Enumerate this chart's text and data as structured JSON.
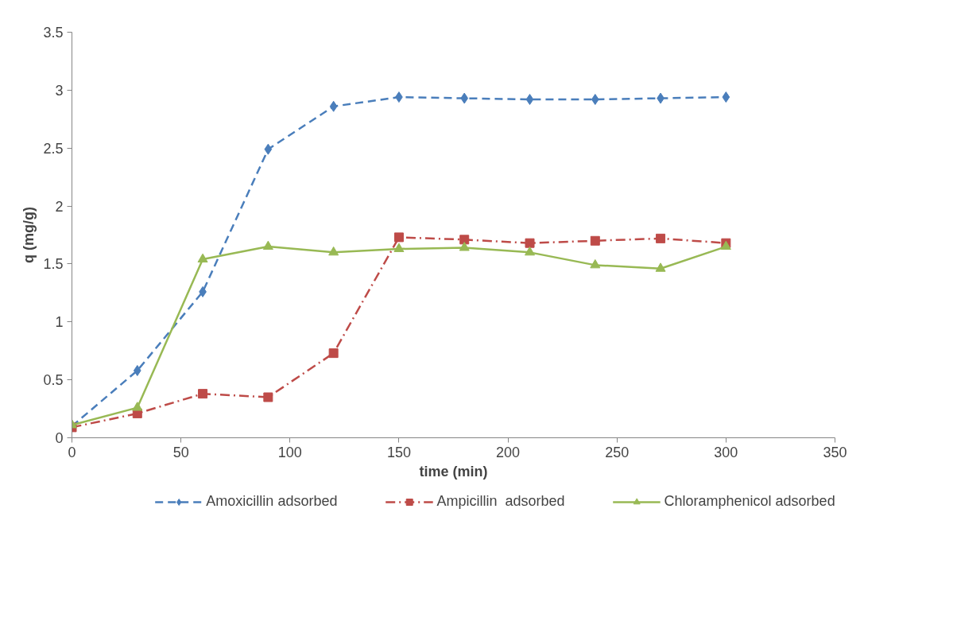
{
  "chart_data": {
    "type": "line",
    "xlabel": "time (min)",
    "ylabel": "q (mg/g)",
    "x": [
      0,
      30,
      60,
      90,
      120,
      150,
      180,
      210,
      240,
      270,
      300
    ],
    "series": [
      {
        "name": "Amoxicillin adsorbed",
        "color": "#4a7ebb",
        "marker": "diamond",
        "line_style": "dashed",
        "values": [
          0.1,
          0.58,
          1.26,
          2.49,
          2.86,
          2.94,
          2.93,
          2.92,
          2.92,
          2.93,
          2.94
        ]
      },
      {
        "name": "Ampicillin  adsorbed",
        "color": "#be4b48",
        "marker": "square",
        "line_style": "dashdot",
        "values": [
          0.09,
          0.21,
          0.38,
          0.35,
          0.73,
          1.73,
          1.71,
          1.68,
          1.7,
          1.72,
          1.68
        ]
      },
      {
        "name": "Chloramphenicol adsorbed",
        "color": "#98b954",
        "marker": "triangle",
        "line_style": "solid",
        "values": [
          0.11,
          0.26,
          1.54,
          1.65,
          1.6,
          1.63,
          1.64,
          1.6,
          1.49,
          1.46,
          1.65
        ]
      }
    ],
    "xlim": [
      0,
      350
    ],
    "xticks": [
      0,
      50,
      100,
      150,
      200,
      250,
      300,
      350
    ],
    "ylim": [
      0,
      3.5
    ],
    "yticks": [
      0,
      0.5,
      1,
      1.5,
      2,
      2.5,
      3,
      3.5
    ],
    "grid": false,
    "legend": "bottom"
  }
}
